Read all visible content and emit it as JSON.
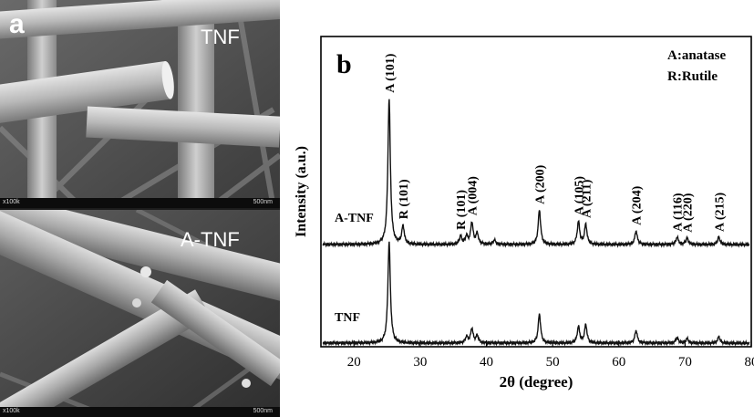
{
  "panel_a": {
    "label": "a",
    "top": {
      "sample_label": "TNF",
      "magnification": "x100k",
      "scale": "500nm"
    },
    "bottom": {
      "sample_label": "A-TNF",
      "magnification": "x100k",
      "scale": "500nm"
    }
  },
  "panel_b": {
    "label": "b",
    "legend": [
      "A:anatase",
      "R:Rutile"
    ],
    "colors": {
      "line": "#111111",
      "frame": "#000000"
    }
  },
  "chart_data": {
    "type": "line",
    "xlabel": "2θ (degree)",
    "ylabel": "Intensity (a.u.)",
    "xlim": [
      15,
      80
    ],
    "xticks": [
      20,
      30,
      40,
      50,
      60,
      70,
      80
    ],
    "series": [
      {
        "name": "A-TNF",
        "baseline": 268,
        "peaks": [
          {
            "x": 25.3,
            "h": 160
          },
          {
            "x": 27.4,
            "h": 20
          },
          {
            "x": 36.1,
            "h": 9
          },
          {
            "x": 37.0,
            "h": 9
          },
          {
            "x": 37.8,
            "h": 24
          },
          {
            "x": 38.6,
            "h": 12
          },
          {
            "x": 41.2,
            "h": 5
          },
          {
            "x": 48.0,
            "h": 38
          },
          {
            "x": 53.9,
            "h": 25
          },
          {
            "x": 55.0,
            "h": 22
          },
          {
            "x": 62.6,
            "h": 15
          },
          {
            "x": 68.8,
            "h": 8
          },
          {
            "x": 70.3,
            "h": 7
          },
          {
            "x": 75.1,
            "h": 8
          }
        ]
      },
      {
        "name": "TNF",
        "baseline": 376,
        "peaks": [
          {
            "x": 25.3,
            "h": 111
          },
          {
            "x": 37.0,
            "h": 7
          },
          {
            "x": 37.8,
            "h": 16
          },
          {
            "x": 38.6,
            "h": 8
          },
          {
            "x": 48.0,
            "h": 32
          },
          {
            "x": 53.9,
            "h": 18
          },
          {
            "x": 55.0,
            "h": 20
          },
          {
            "x": 62.6,
            "h": 14
          },
          {
            "x": 68.8,
            "h": 6
          },
          {
            "x": 70.3,
            "h": 5
          },
          {
            "x": 75.1,
            "h": 7
          }
        ]
      }
    ],
    "annotations": [
      {
        "text": "A (101)",
        "x": 25.3
      },
      {
        "text": "R (101)",
        "x": 27.4
      },
      {
        "text": "R (101)",
        "x": 36.1
      },
      {
        "text": "A (004)",
        "x": 37.8
      },
      {
        "text": "A (200)",
        "x": 48.0
      },
      {
        "text": "A (105)",
        "x": 53.9
      },
      {
        "text": "A (211)",
        "x": 55.0
      },
      {
        "text": "A (204)",
        "x": 62.6
      },
      {
        "text": "A (116)",
        "x": 68.8
      },
      {
        "text": "A (220)",
        "x": 70.3
      },
      {
        "text": "A (215)",
        "x": 75.1
      }
    ],
    "grid": false
  }
}
